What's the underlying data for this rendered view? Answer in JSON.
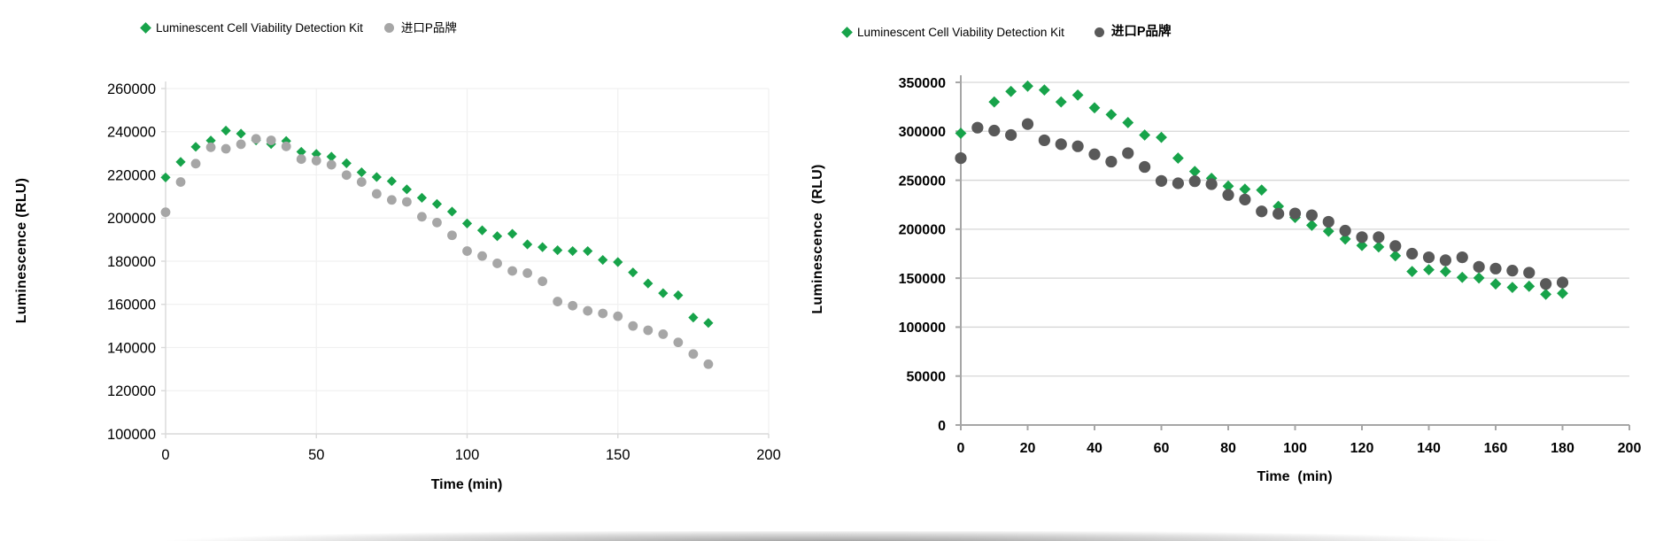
{
  "chart_data": [
    {
      "type": "scatter",
      "title": "",
      "xlabel": "Time (min)",
      "ylabel": "Luminescence (RLU)",
      "xlim": [
        0,
        200
      ],
      "xtick_step": 50,
      "ylim": [
        100000,
        260000
      ],
      "ytick_step": 20000,
      "grid": "on",
      "legend_position": "top",
      "grid_color": "#f1f1f1",
      "axis_color": "#d9d9d9",
      "x": [
        0,
        5,
        10,
        15,
        20,
        25,
        30,
        35,
        40,
        45,
        50,
        55,
        60,
        65,
        70,
        75,
        80,
        85,
        90,
        95,
        100,
        105,
        110,
        115,
        120,
        125,
        130,
        135,
        140,
        145,
        150,
        155,
        160,
        165,
        170,
        175,
        180
      ],
      "series": [
        {
          "name": "Luminescent Cell Viability Detection Kit",
          "marker": "diamond",
          "color": "#17a34a",
          "values": [
            218800,
            226000,
            233000,
            235900,
            240500,
            239100,
            236000,
            234300,
            235700,
            230700,
            229700,
            228400,
            225400,
            221200,
            219000,
            217100,
            213300,
            209400,
            206500,
            203000,
            197500,
            194300,
            191600,
            192700,
            187800,
            186500,
            185100,
            184700,
            184700,
            180600,
            179600,
            174800,
            169700,
            165200,
            164200,
            153900,
            151400
          ]
        },
        {
          "name": "进口P品牌",
          "marker": "circle",
          "color": "#a6a6a6",
          "values": [
            202700,
            216700,
            225200,
            232800,
            232100,
            234200,
            236700,
            236000,
            233200,
            227300,
            226600,
            224700,
            219900,
            216700,
            211200,
            208400,
            207500,
            200600,
            197900,
            192000,
            184700,
            182400,
            179000,
            175500,
            174500,
            170700,
            161300,
            159400,
            157000,
            155800,
            154500,
            150000,
            148000,
            146200,
            142400,
            137000,
            132300
          ]
        }
      ]
    },
    {
      "type": "scatter",
      "title": "",
      "xlabel": "Time  (min)",
      "ylabel": "Luminescence  (RLU)",
      "xlim": [
        0,
        200
      ],
      "xtick_step": 20,
      "ylim": [
        0,
        350000
      ],
      "ytick_step": 50000,
      "grid": "on",
      "legend_position": "top",
      "grid_color": "#d6d6d6",
      "axis_color": "#a6a6a6",
      "x": [
        0,
        5,
        10,
        15,
        20,
        25,
        30,
        35,
        40,
        45,
        50,
        55,
        60,
        65,
        70,
        75,
        80,
        85,
        90,
        95,
        100,
        105,
        110,
        115,
        120,
        125,
        130,
        135,
        140,
        145,
        150,
        155,
        160,
        165,
        170,
        175,
        180
      ],
      "series": [
        {
          "name": "Luminescent Cell Viability Detection Kit",
          "marker": "diamond",
          "color": "#17a34a",
          "values": [
            298000,
            303700,
            330000,
            340700,
            346100,
            342200,
            330000,
            337000,
            324000,
            317100,
            308900,
            296200,
            293800,
            272600,
            259000,
            252000,
            244000,
            240900,
            240000,
            223400,
            212000,
            204000,
            197900,
            190000,
            183400,
            181900,
            172900,
            156800,
            158600,
            156800,
            150800,
            150200,
            144100,
            140500,
            141700,
            133500,
            134500
          ]
        },
        {
          "name": "进口P品牌",
          "marker": "circle",
          "color": "#595959",
          "values": [
            272600,
            303700,
            300700,
            296200,
            307400,
            290800,
            286800,
            284700,
            276500,
            269000,
            277700,
            263600,
            249300,
            246900,
            249000,
            246000,
            235000,
            230300,
            218200,
            215800,
            216100,
            214300,
            207600,
            198500,
            191900,
            191900,
            182800,
            175000,
            171300,
            168300,
            171300,
            161600,
            159800,
            157700,
            155600,
            144100,
            145600
          ]
        }
      ]
    }
  ]
}
